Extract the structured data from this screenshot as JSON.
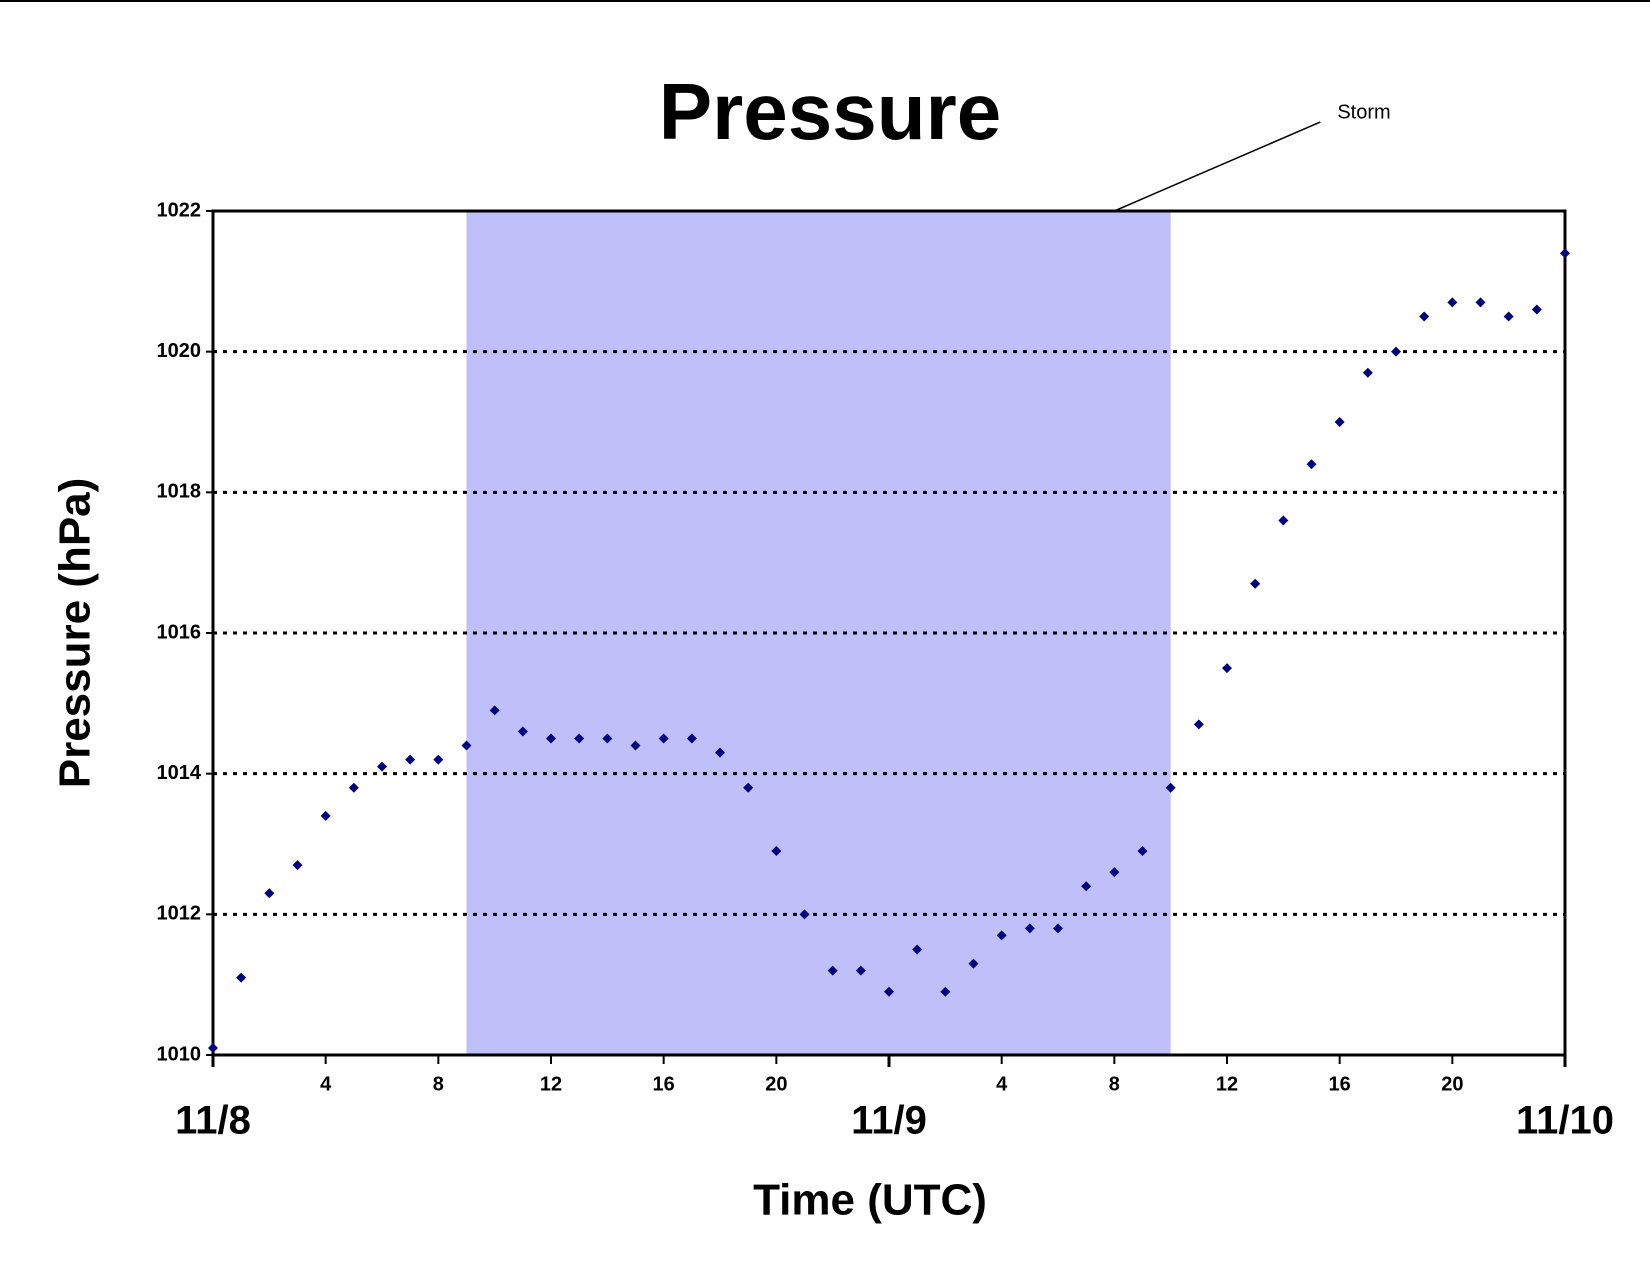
{
  "chart_data": {
    "type": "scatter",
    "title": "Pressure",
    "xlabel": "Time (UTC)",
    "ylabel": "Pressure (hPa)",
    "x": [
      0,
      1,
      2,
      3,
      4,
      5,
      6,
      7,
      8,
      9,
      10,
      11,
      12,
      13,
      14,
      15,
      16,
      17,
      18,
      19,
      20,
      21,
      22,
      23,
      24,
      25,
      26,
      27,
      28,
      29,
      30,
      31,
      32,
      33,
      34,
      35,
      36,
      37,
      38,
      39,
      40,
      41,
      42,
      43,
      44,
      45,
      46,
      47,
      48
    ],
    "series": [
      {
        "name": "Pressure",
        "color": "#000080",
        "values": [
          1010.1,
          1011.1,
          1012.3,
          1012.7,
          1013.4,
          1013.8,
          1014.1,
          1014.2,
          1014.2,
          1014.4,
          1014.9,
          1014.6,
          1014.5,
          1014.5,
          1014.5,
          1014.4,
          1014.5,
          1014.5,
          1014.3,
          1013.8,
          1012.9,
          1012.0,
          1011.2,
          1011.2,
          1010.9,
          1011.5,
          1010.9,
          1011.3,
          1011.7,
          1011.8,
          1011.8,
          1012.4,
          1012.6,
          1012.9,
          1013.8,
          1014.7,
          1015.5,
          1016.7,
          1017.6,
          1018.4,
          1019.0,
          1019.7,
          1020.0,
          1020.5,
          1020.7,
          1020.7,
          1020.5,
          1020.6,
          1021.4
        ]
      }
    ],
    "xlim": [
      0,
      48
    ],
    "xticks": [
      4,
      8,
      12,
      16,
      20,
      {
        "value": 28,
        "label": "4"
      },
      {
        "value": 32,
        "label": "8"
      },
      {
        "value": 36,
        "label": "12"
      },
      {
        "value": 40,
        "label": "16"
      },
      {
        "value": 44,
        "label": "20"
      }
    ],
    "date_labels": [
      {
        "value": 0,
        "label": "11/8"
      },
      {
        "value": 24,
        "label": "11/9"
      },
      {
        "value": 48,
        "label": "11/10"
      }
    ],
    "ylim": [
      1010,
      1022
    ],
    "yticks": [
      1010,
      1012,
      1014,
      1016,
      1018,
      1020,
      1022
    ],
    "grid": true,
    "annotations": [
      {
        "text": "Storm",
        "x": [
          9,
          34
        ],
        "color": "#bfbffa"
      }
    ]
  }
}
